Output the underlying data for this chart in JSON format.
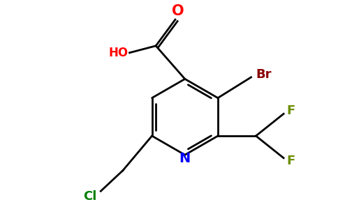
{
  "background_color": "#ffffff",
  "bond_color": "#000000",
  "atom_colors": {
    "N": "#0000ff",
    "O": "#ff0000",
    "HO": "#ff0000",
    "Br": "#8b0000",
    "F": "#6b8e00",
    "Cl": "#008000"
  },
  "figsize": [
    4.84,
    3.0
  ],
  "dpi": 100
}
